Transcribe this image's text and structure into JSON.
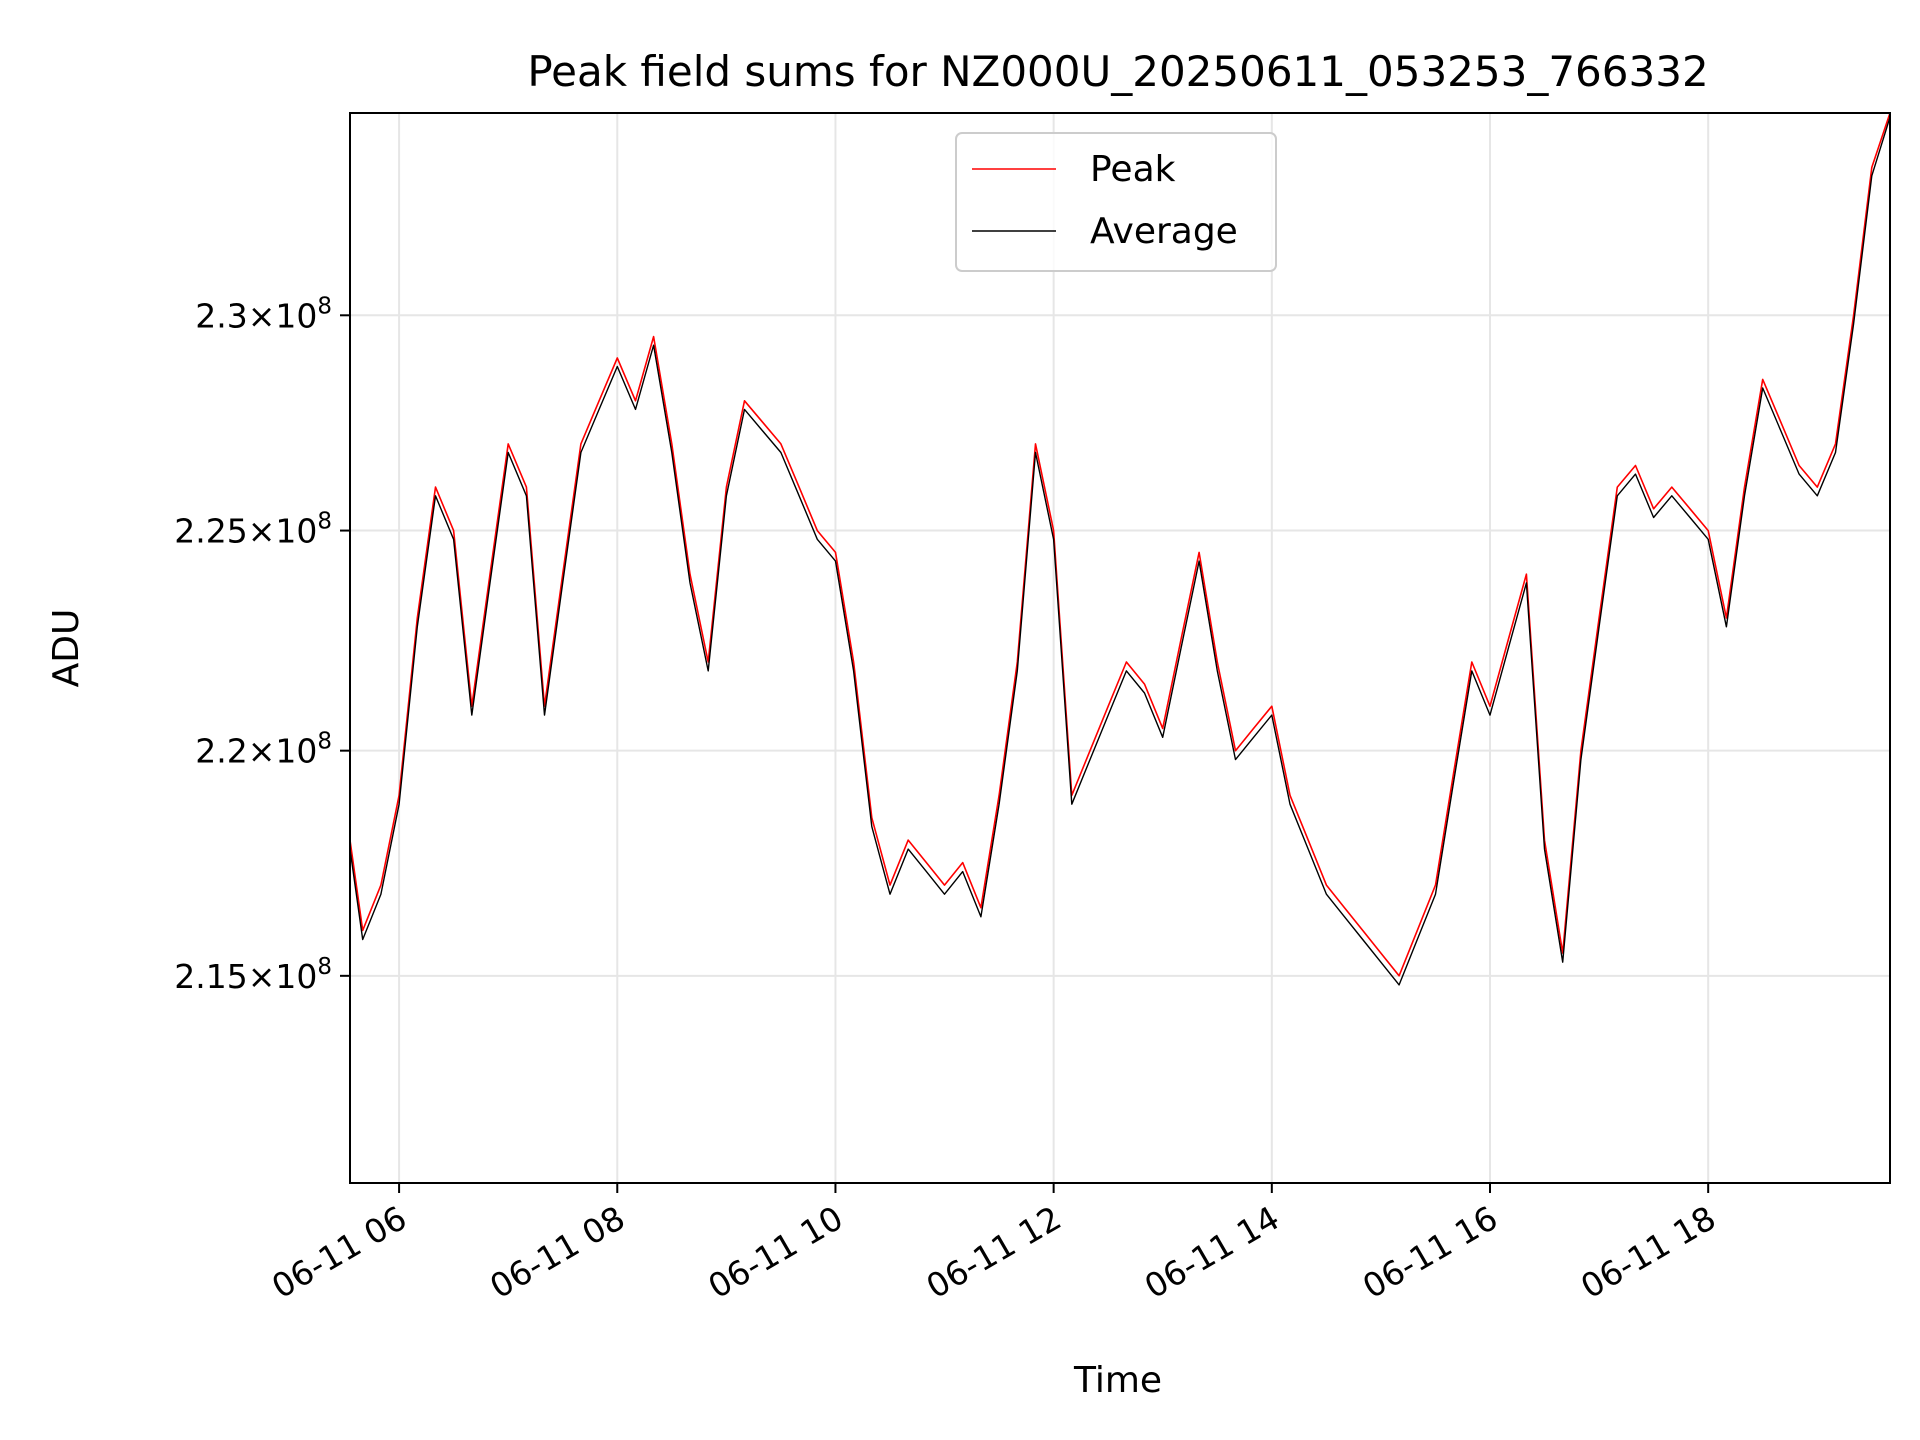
{
  "chart_data": {
    "type": "line",
    "title": "Peak field sums for NZ000U_20250611_053253_766332",
    "xlabel": "Time",
    "ylabel": "ADU",
    "y_scale": "log",
    "grid": true,
    "legend_position": "top-center",
    "xlim": [
      "06-11 05:33",
      "06-11 19:40"
    ],
    "ylim": [
      210500000,
      234800000
    ],
    "x_ticks": [
      "06-11 06",
      "06-11 08",
      "06-11 10",
      "06-11 12",
      "06-11 14",
      "06-11 16",
      "06-11 18"
    ],
    "y_ticks": [
      {
        "value": 215000000,
        "mantissa": "2.15",
        "base": "10",
        "exp": "8"
      },
      {
        "value": 220000000,
        "mantissa": "2.2",
        "base": "10",
        "exp": "8"
      },
      {
        "value": 225000000,
        "mantissa": "2.25",
        "base": "10",
        "exp": "8"
      },
      {
        "value": 230000000,
        "mantissa": "2.3",
        "base": "10",
        "exp": "8"
      }
    ],
    "series": [
      {
        "name": "Peak",
        "color": "#ff0000"
      },
      {
        "name": "Average",
        "color": "#000000"
      }
    ],
    "x": [
      "06-11 05:33",
      "06-11 05:40",
      "06-11 05:50",
      "06-11 06:00",
      "06-11 06:10",
      "06-11 06:20",
      "06-11 06:30",
      "06-11 06:40",
      "06-11 06:50",
      "06-11 07:00",
      "06-11 07:10",
      "06-11 07:20",
      "06-11 07:30",
      "06-11 07:40",
      "06-11 07:50",
      "06-11 08:00",
      "06-11 08:10",
      "06-11 08:20",
      "06-11 08:30",
      "06-11 08:40",
      "06-11 08:50",
      "06-11 09:00",
      "06-11 09:10",
      "06-11 09:20",
      "06-11 09:30",
      "06-11 09:40",
      "06-11 09:50",
      "06-11 10:00",
      "06-11 10:10",
      "06-11 10:20",
      "06-11 10:30",
      "06-11 10:40",
      "06-11 10:50",
      "06-11 11:00",
      "06-11 11:10",
      "06-11 11:20",
      "06-11 11:30",
      "06-11 11:40",
      "06-11 11:50",
      "06-11 12:00",
      "06-11 12:10",
      "06-11 12:20",
      "06-11 12:30",
      "06-11 12:40",
      "06-11 12:50",
      "06-11 13:00",
      "06-11 13:10",
      "06-11 13:20",
      "06-11 13:30",
      "06-11 13:40",
      "06-11 13:50",
      "06-11 14:00",
      "06-11 14:10",
      "06-11 14:20",
      "06-11 14:30",
      "06-11 14:40",
      "06-11 14:50",
      "06-11 15:00",
      "06-11 15:10",
      "06-11 15:20",
      "06-11 15:30",
      "06-11 15:40",
      "06-11 15:50",
      "06-11 16:00",
      "06-11 16:10",
      "06-11 16:20",
      "06-11 16:30",
      "06-11 16:40",
      "06-11 16:50",
      "06-11 17:00",
      "06-11 17:10",
      "06-11 17:20",
      "06-11 17:30",
      "06-11 17:40",
      "06-11 17:50",
      "06-11 18:00",
      "06-11 18:10",
      "06-11 18:20",
      "06-11 18:30",
      "06-11 18:40",
      "06-11 18:50",
      "06-11 19:00",
      "06-11 19:10",
      "06-11 19:20",
      "06-11 19:30",
      "06-11 19:40"
    ],
    "peak_values": [
      218000000,
      216000000,
      217000000,
      219000000,
      223000000,
      226000000,
      225000000,
      221000000,
      224000000,
      227000000,
      226000000,
      221000000,
      224000000,
      227000000,
      228000000,
      229000000,
      228000000,
      229500000,
      227000000,
      224000000,
      222000000,
      226000000,
      228000000,
      227500000,
      227000000,
      226000000,
      225000000,
      224500000,
      222000000,
      218500000,
      217000000,
      218000000,
      217500000,
      217000000,
      217500000,
      216500000,
      219000000,
      222000000,
      227000000,
      225000000,
      219000000,
      220000000,
      221000000,
      222000000,
      221500000,
      220500000,
      222500000,
      224500000,
      222000000,
      220000000,
      220500000,
      221000000,
      219000000,
      218000000,
      217000000,
      216500000,
      216000000,
      215500000,
      215000000,
      216000000,
      217000000,
      219500000,
      222000000,
      221000000,
      222500000,
      224000000,
      218000000,
      215500000,
      220000000,
      223000000,
      226000000,
      226500000,
      225500000,
      226000000,
      225500000,
      225000000,
      223000000,
      226000000,
      228500000,
      227500000,
      226500000,
      226000000,
      227000000,
      230000000,
      233500000,
      234800000
    ],
    "average_values": [
      217800000,
      215800000,
      216800000,
      218800000,
      222800000,
      225800000,
      224800000,
      220800000,
      223800000,
      226800000,
      225800000,
      220800000,
      223800000,
      226800000,
      227800000,
      228800000,
      227800000,
      229300000,
      226800000,
      223800000,
      221800000,
      225800000,
      227800000,
      227300000,
      226800000,
      225800000,
      224800000,
      224300000,
      221800000,
      218300000,
      216800000,
      217800000,
      217300000,
      216800000,
      217300000,
      216300000,
      218800000,
      221800000,
      226800000,
      224800000,
      218800000,
      219800000,
      220800000,
      221800000,
      221300000,
      220300000,
      222300000,
      224300000,
      221800000,
      219800000,
      220300000,
      220800000,
      218800000,
      217800000,
      216800000,
      216300000,
      215800000,
      215300000,
      214800000,
      215800000,
      216800000,
      219300000,
      221800000,
      220800000,
      222300000,
      223800000,
      217800000,
      215300000,
      219800000,
      222800000,
      225800000,
      226300000,
      225300000,
      225800000,
      225300000,
      224800000,
      222800000,
      225800000,
      228300000,
      227300000,
      226300000,
      225800000,
      226800000,
      229800000,
      233300000,
      234700000
    ]
  }
}
